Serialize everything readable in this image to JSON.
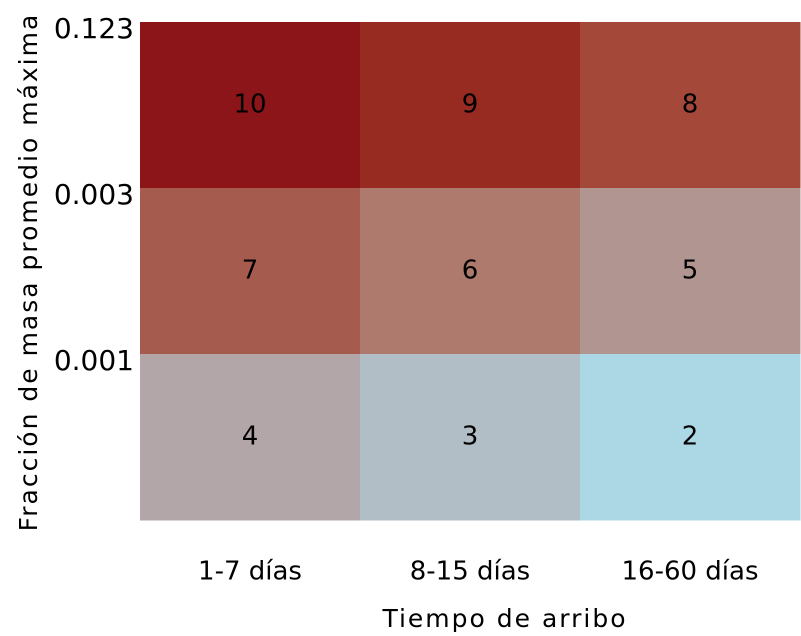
{
  "chart_data": {
    "type": "heatmap",
    "x_label": "Tiempo de arribo",
    "y_label": "Fracción de masa promedio máxima",
    "categories": [
      "1-7 días",
      "8-15 días",
      "16-60 días"
    ],
    "yticks": [
      0.123,
      0.003,
      0.001
    ],
    "values": [
      [
        10,
        9,
        8
      ],
      [
        7,
        6,
        5
      ],
      [
        4,
        3,
        2
      ]
    ],
    "colors": [
      [
        "#8b1519",
        "#982b21",
        "#a4483a"
      ],
      [
        "#a55c4e",
        "#ad7a6d",
        "#b09590"
      ],
      [
        "#b3a6a9",
        "#b1bec6",
        "#acd8e6"
      ]
    ]
  }
}
